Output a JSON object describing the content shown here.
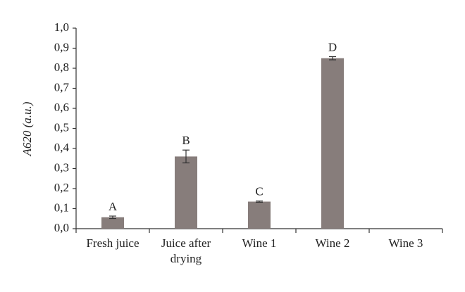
{
  "chart_data": {
    "type": "bar",
    "y_label": "A620 (a.u.)",
    "categories": [
      "Fresh juice",
      "Juice after drying",
      "Wine 1",
      "Wine 2",
      "Wine 3"
    ],
    "values": [
      0.057,
      0.36,
      0.135,
      0.85,
      0
    ],
    "errors": [
      0.006,
      0.032,
      0.003,
      0.008,
      0
    ],
    "group_letters": [
      "A",
      "B",
      "C",
      "D",
      null
    ],
    "color": "#877d7b",
    "ylim": [
      0,
      1.0
    ],
    "yticks": [
      {
        "value": 0,
        "label": "0,0"
      },
      {
        "value": 0.1,
        "label": "0,1"
      },
      {
        "value": 0.2,
        "label": "0,2"
      },
      {
        "value": 0.3,
        "label": "0,3"
      },
      {
        "value": 0.4,
        "label": "0,4"
      },
      {
        "value": 0.5,
        "label": "0,5"
      },
      {
        "value": 0.6,
        "label": "0,6"
      },
      {
        "value": 0.7,
        "label": "0,7"
      },
      {
        "value": 0.8,
        "label": "0,8"
      },
      {
        "value": 0.9,
        "label": "0,9"
      },
      {
        "value": 1.0,
        "label": "1,0"
      }
    ],
    "grid": false
  }
}
